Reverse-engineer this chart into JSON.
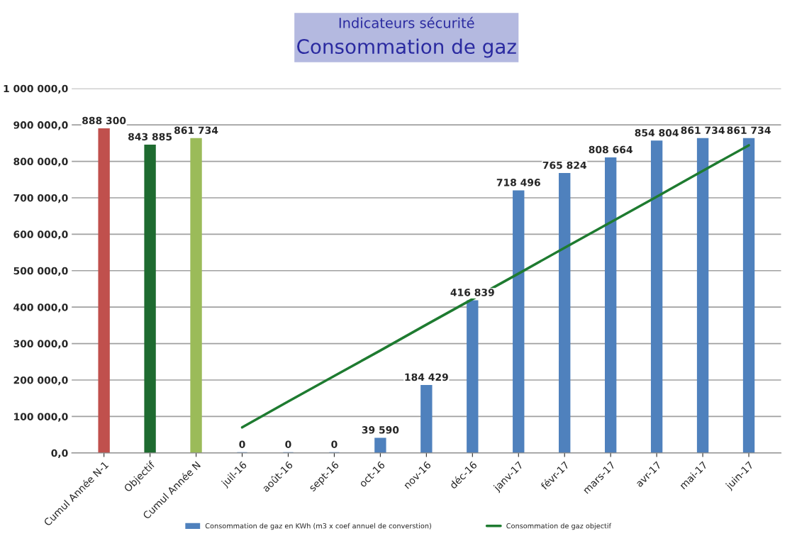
{
  "chart_data": {
    "type": "bar",
    "title": "Indicateurs sécurité",
    "subtitle": "Consommation de gaz",
    "categories": [
      "Cumul Année N-1",
      "Objectif",
      "Cumul Année N",
      "juil-16",
      "août-16",
      "sept-16",
      "oct-16",
      "nov-16",
      "déc-16",
      "janv-17",
      "févr-17",
      "mars-17",
      "avr-17",
      "mai-17",
      "juin-17"
    ],
    "series": [
      {
        "name": "Consommation de gaz en KWh (m3 x coef annuel de converstion)",
        "color": "#4f81bd",
        "colors": [
          "#c0504d",
          "#1e6b30",
          "#9bbb59",
          "#4f81bd",
          "#4f81bd",
          "#4f81bd",
          "#4f81bd",
          "#4f81bd",
          "#4f81bd",
          "#4f81bd",
          "#4f81bd",
          "#4f81bd",
          "#4f81bd",
          "#4f81bd",
          "#4f81bd"
        ],
        "values": [
          888300,
          843885,
          861734,
          0,
          0,
          0,
          39590,
          184429,
          416839,
          718496,
          765824,
          808664,
          854804,
          861734,
          861734
        ],
        "value_labels": [
          "888 300",
          "843 885",
          "861 734",
          "0",
          "0",
          "0",
          "39 590",
          "184 429",
          "416 839",
          "718 496",
          "765 824",
          "808 664",
          "854 804",
          "861 734",
          "861 734"
        ]
      },
      {
        "name": "Consommation de gaz objectif",
        "type": "line",
        "color": "#1e7b30",
        "values": [
          null,
          null,
          null,
          70000,
          141000,
          211000,
          281000,
          352000,
          422000,
          492000,
          563000,
          633000,
          703000,
          774000,
          844000
        ]
      }
    ],
    "ylim": [
      0,
      1000000
    ],
    "yticks": [
      {
        "value": 0,
        "label": "0,0"
      },
      {
        "value": 100000,
        "label": "100 000,0"
      },
      {
        "value": 200000,
        "label": "200 000,0"
      },
      {
        "value": 300000,
        "label": "300 000,0"
      },
      {
        "value": 400000,
        "label": "400 000,0"
      },
      {
        "value": 500000,
        "label": "500 000,0"
      },
      {
        "value": 600000,
        "label": "600 000,0"
      },
      {
        "value": 700000,
        "label": "700 000,0"
      },
      {
        "value": 800000,
        "label": "800 000,0"
      },
      {
        "value": 900000,
        "label": "900 000,0"
      },
      {
        "value": 1000000,
        "label": "1 000 000,0"
      }
    ],
    "grid": "y",
    "legend": "bottom"
  }
}
